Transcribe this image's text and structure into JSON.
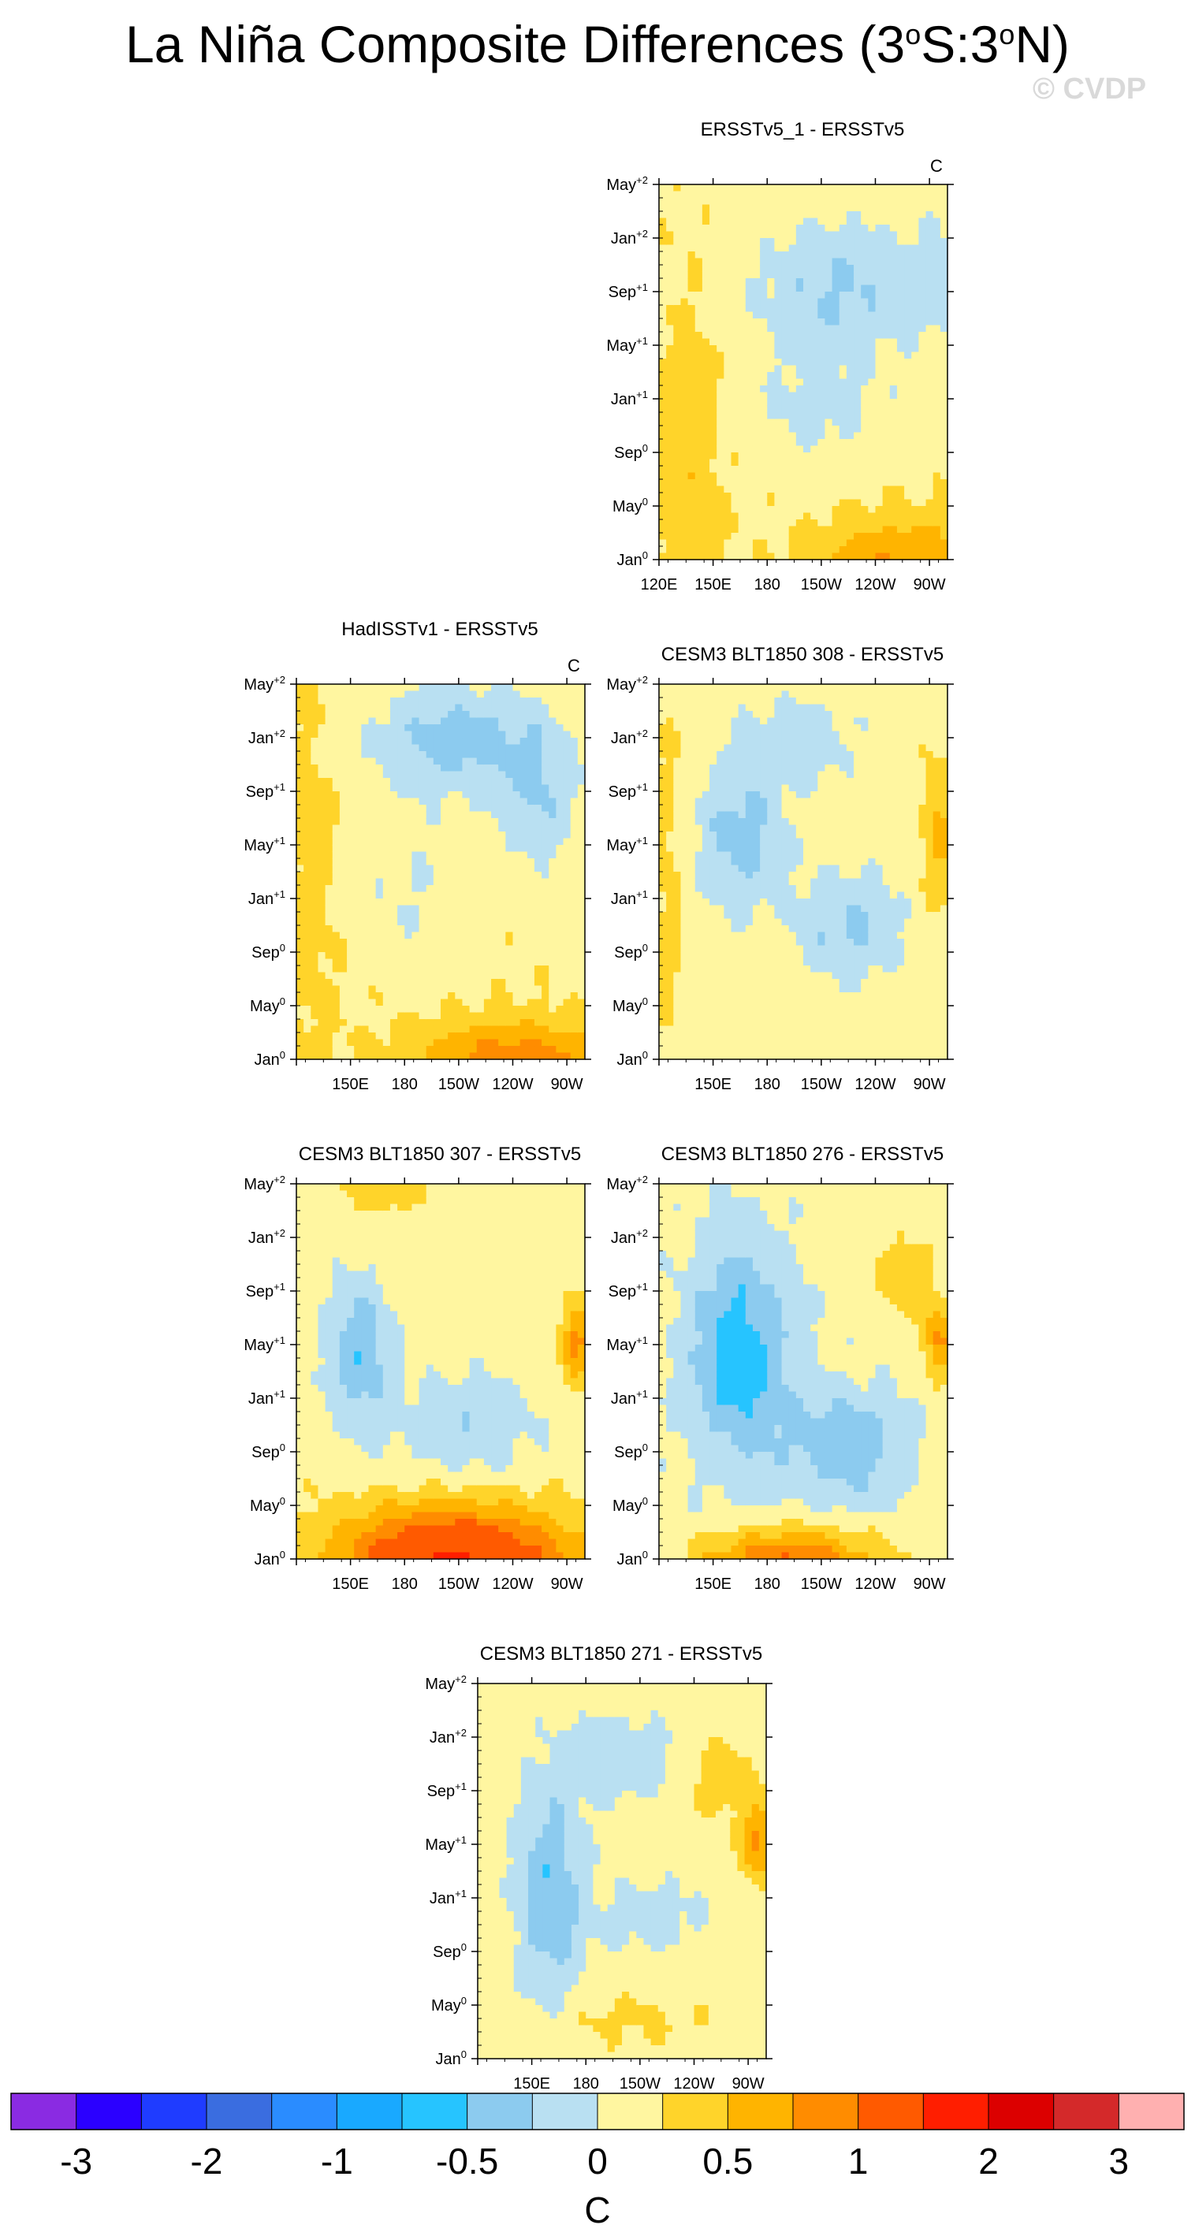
{
  "title_main": "La Niña Composite Differences (3",
  "title_lat1": "S:3",
  "title_tail": "N)",
  "title_deg": "o",
  "watermark": "© CVDP",
  "chart_data": {
    "type": "heatmap",
    "x_axis_ticks": [
      "120E",
      "150E",
      "180",
      "150W",
      "120W",
      "90W"
    ],
    "x_axis_ticks_no120": [
      "150E",
      "180",
      "150W",
      "120W",
      "90W"
    ],
    "y_axis_ticks": [
      {
        "base": "Jan",
        "sup": "0"
      },
      {
        "base": "May",
        "sup": "0"
      },
      {
        "base": "Sep",
        "sup": "0"
      },
      {
        "base": "Jan",
        "sup": "+1"
      },
      {
        "base": "May",
        "sup": "+1"
      },
      {
        "base": "Sep",
        "sup": "+1"
      },
      {
        "base": "Jan",
        "sup": "+2"
      },
      {
        "base": "May",
        "sup": "+2"
      }
    ],
    "units": "C",
    "panels": [
      {
        "title": "ERSSTv5_1 - ERSSTv5",
        "units_label": "C",
        "show_120E": true,
        "pattern": "obs1",
        "description": "warm west, cool central/east year+1 and +2, warm east early"
      },
      {
        "title": "HadISSTv1 - ERSSTv5",
        "units_label": "C",
        "show_120E": false,
        "pattern": "had"
      },
      {
        "title": "CESM3 BLT1850 308 - ERSSTv5",
        "units_label": "",
        "show_120E": false,
        "pattern": "m308"
      },
      {
        "title": "CESM3 BLT1850 307 - ERSSTv5",
        "units_label": "",
        "show_120E": false,
        "pattern": "m307"
      },
      {
        "title": "CESM3 BLT1850 276 - ERSSTv5",
        "units_label": "",
        "show_120E": false,
        "pattern": "m276"
      },
      {
        "title": "CESM3 BLT1850 271 - ERSSTv5",
        "units_label": "",
        "show_120E": false,
        "pattern": "m271"
      }
    ],
    "colorbar": {
      "levels": [
        -3,
        -2.5,
        -2,
        -1.5,
        -1,
        -0.75,
        -0.5,
        -0.25,
        0,
        0.25,
        0.5,
        0.75,
        1,
        1.5,
        2,
        2.5,
        3
      ],
      "labels": [
        "-3",
        "-2",
        "-1",
        "-0.5",
        "0",
        "0.5",
        "1",
        "2",
        "3"
      ],
      "colors": [
        "#8a2be2",
        "#2b00ff",
        "#1f3cff",
        "#3a6de0",
        "#2a8cff",
        "#19a9ff",
        "#26c4ff",
        "#8ccbef",
        "#b9e0f2",
        "#fff6a0",
        "#ffd42a",
        "#ffb400",
        "#ff8c00",
        "#ff5a00",
        "#ff1e00",
        "#dc0000",
        "#d4292a",
        "#ffb0b0"
      ],
      "unit": "C"
    }
  }
}
